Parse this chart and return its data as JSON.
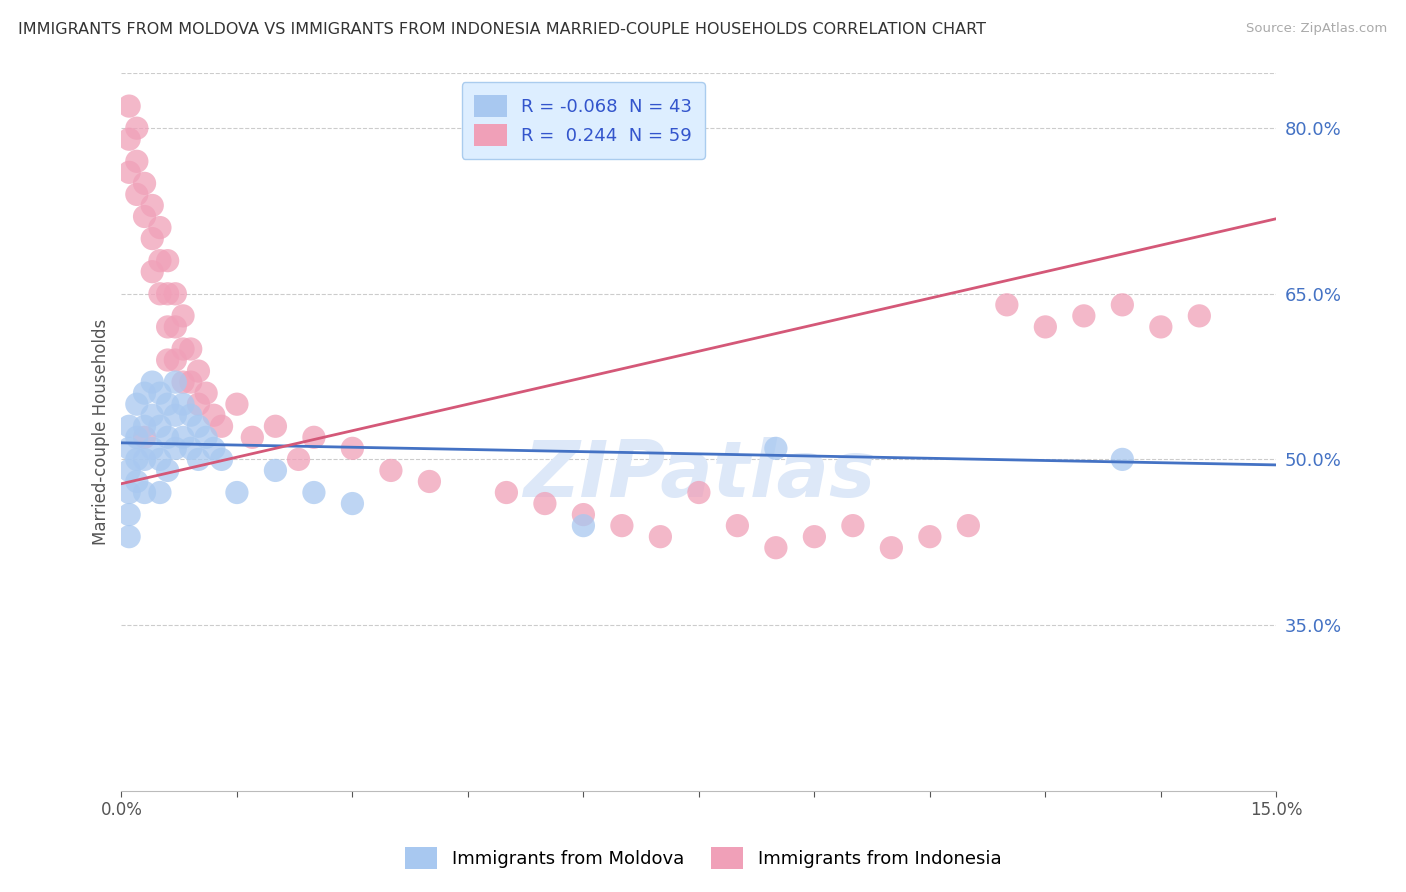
{
  "title": "IMMIGRANTS FROM MOLDOVA VS IMMIGRANTS FROM INDONESIA MARRIED-COUPLE HOUSEHOLDS CORRELATION CHART",
  "source": "Source: ZipAtlas.com",
  "ylabel": "Married-couple Households",
  "xlim": [
    0.0,
    0.15
  ],
  "ylim": [
    0.2,
    0.85
  ],
  "ytick_positions_right": [
    0.8,
    0.65,
    0.5,
    0.35
  ],
  "moldova_R": -0.068,
  "moldova_N": 43,
  "indonesia_R": 0.244,
  "indonesia_N": 59,
  "moldova_color": "#a8c8f0",
  "indonesia_color": "#f0a0b8",
  "moldova_line_color": "#4472c4",
  "indonesia_line_color": "#d45878",
  "watermark": "ZIPatlas",
  "moldova_line_y0": 0.515,
  "moldova_line_y1": 0.495,
  "indonesia_line_y0": 0.478,
  "indonesia_line_y1": 0.718,
  "moldova_scatter_x": [
    0.001,
    0.001,
    0.001,
    0.001,
    0.001,
    0.001,
    0.002,
    0.002,
    0.002,
    0.002,
    0.003,
    0.003,
    0.003,
    0.003,
    0.004,
    0.004,
    0.004,
    0.005,
    0.005,
    0.005,
    0.005,
    0.006,
    0.006,
    0.006,
    0.007,
    0.007,
    0.007,
    0.008,
    0.008,
    0.009,
    0.009,
    0.01,
    0.01,
    0.011,
    0.012,
    0.013,
    0.015,
    0.02,
    0.025,
    0.03,
    0.06,
    0.085,
    0.13
  ],
  "moldova_scatter_y": [
    0.53,
    0.51,
    0.49,
    0.47,
    0.45,
    0.43,
    0.55,
    0.52,
    0.5,
    0.48,
    0.56,
    0.53,
    0.5,
    0.47,
    0.57,
    0.54,
    0.51,
    0.56,
    0.53,
    0.5,
    0.47,
    0.55,
    0.52,
    0.49,
    0.57,
    0.54,
    0.51,
    0.55,
    0.52,
    0.54,
    0.51,
    0.53,
    0.5,
    0.52,
    0.51,
    0.5,
    0.47,
    0.49,
    0.47,
    0.46,
    0.44,
    0.51,
    0.5
  ],
  "indonesia_scatter_x": [
    0.001,
    0.001,
    0.001,
    0.002,
    0.002,
    0.002,
    0.003,
    0.003,
    0.003,
    0.004,
    0.004,
    0.004,
    0.005,
    0.005,
    0.005,
    0.006,
    0.006,
    0.006,
    0.006,
    0.007,
    0.007,
    0.007,
    0.008,
    0.008,
    0.008,
    0.009,
    0.009,
    0.01,
    0.01,
    0.011,
    0.012,
    0.013,
    0.015,
    0.017,
    0.02,
    0.023,
    0.025,
    0.03,
    0.035,
    0.04,
    0.05,
    0.055,
    0.06,
    0.065,
    0.07,
    0.075,
    0.08,
    0.085,
    0.09,
    0.095,
    0.1,
    0.105,
    0.11,
    0.115,
    0.12,
    0.125,
    0.13,
    0.135,
    0.14
  ],
  "indonesia_scatter_y": [
    0.82,
    0.79,
    0.76,
    0.8,
    0.77,
    0.74,
    0.75,
    0.72,
    0.52,
    0.73,
    0.7,
    0.67,
    0.71,
    0.68,
    0.65,
    0.68,
    0.65,
    0.62,
    0.59,
    0.65,
    0.62,
    0.59,
    0.63,
    0.6,
    0.57,
    0.6,
    0.57,
    0.58,
    0.55,
    0.56,
    0.54,
    0.53,
    0.55,
    0.52,
    0.53,
    0.5,
    0.52,
    0.51,
    0.49,
    0.48,
    0.47,
    0.46,
    0.45,
    0.44,
    0.43,
    0.47,
    0.44,
    0.42,
    0.43,
    0.44,
    0.42,
    0.43,
    0.44,
    0.64,
    0.62,
    0.63,
    0.64,
    0.62,
    0.63
  ]
}
